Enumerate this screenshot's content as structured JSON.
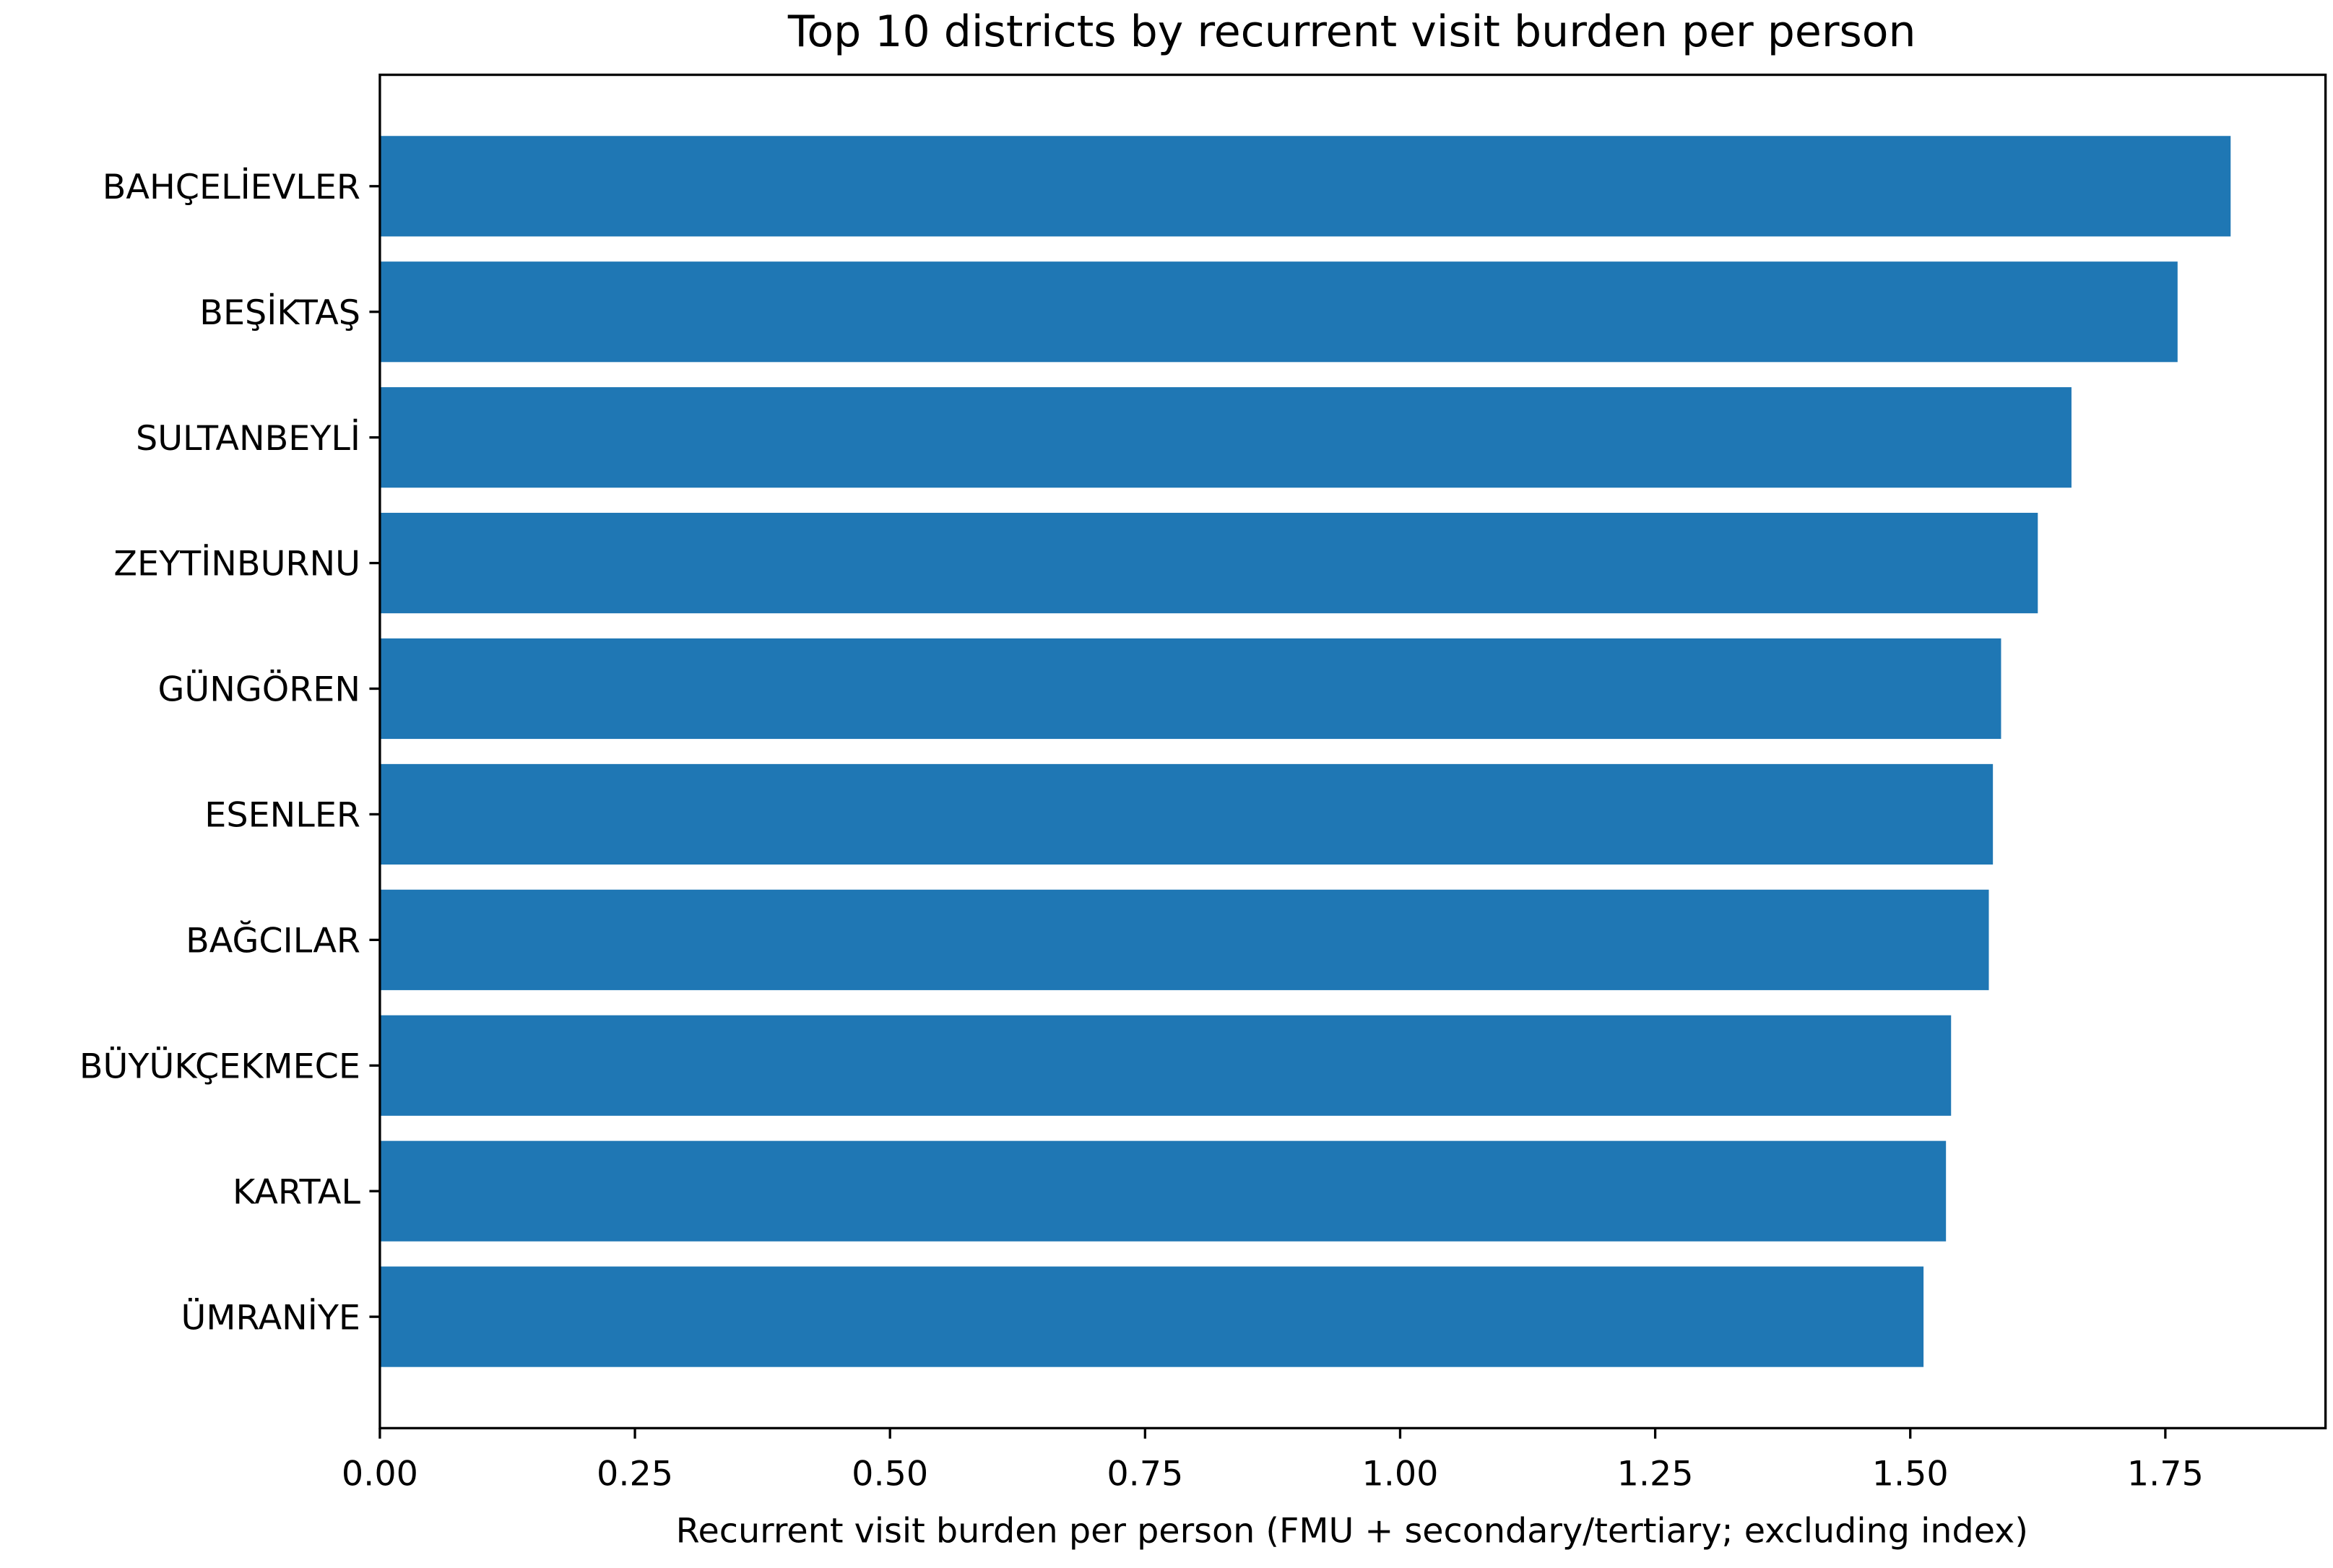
{
  "chart_data": {
    "type": "bar",
    "orientation": "horizontal",
    "title": "Top 10 districts by recurrent visit burden per person",
    "xlabel": "Recurrent visit burden per person (FMU + secondary/tertiary; excluding index)",
    "categories": [
      "BAHÇELİEVLER",
      "BEŞİKTAŞ",
      "SULTANBEYLİ",
      "ZEYTİNBURNU",
      "GÜNGÖREN",
      "ESENLER",
      "BAĞCILAR",
      "BÜYÜKÇEKMECE",
      "KARTAL",
      "ÜMRANİYE"
    ],
    "values": [
      1.814,
      1.762,
      1.658,
      1.625,
      1.589,
      1.581,
      1.577,
      1.54,
      1.535,
      1.513
    ],
    "color": "#1f77b4",
    "xlim": [
      0,
      1.907
    ],
    "xticks": [
      {
        "value": 0,
        "label": "0.00"
      },
      0.25,
      {
        "value": 0.5,
        "label": "0.50"
      },
      0.75,
      {
        "value": 1,
        "label": "1.00"
      },
      1.25,
      {
        "value": 1.5,
        "label": "1.50"
      },
      1.75
    ],
    "grid": false
  }
}
